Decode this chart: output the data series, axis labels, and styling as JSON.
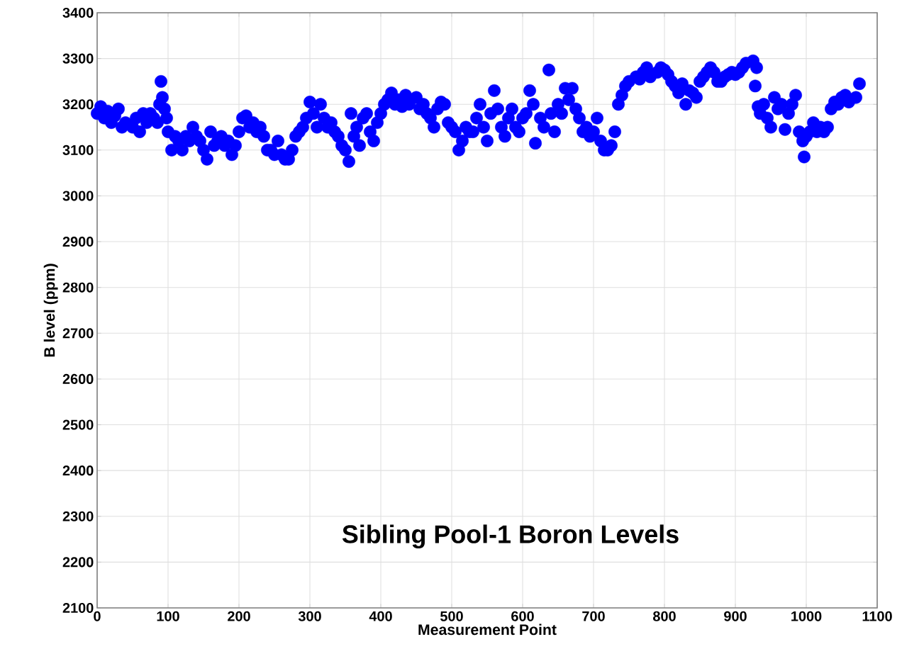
{
  "chart_data": {
    "type": "scatter",
    "title": "Sibling Pool-1 Boron Levels",
    "xlabel": "Measurement Point",
    "ylabel": "B level (ppm)",
    "xlim": [
      0,
      1100
    ],
    "ylim": [
      2100,
      3400
    ],
    "xticks": [
      0,
      100,
      200,
      300,
      400,
      500,
      600,
      700,
      800,
      900,
      1000,
      1100
    ],
    "yticks": [
      2100,
      2200,
      2300,
      2400,
      2500,
      2600,
      2700,
      2800,
      2900,
      3000,
      3100,
      3200,
      3300,
      3400
    ],
    "grid": true,
    "color": "#0000ff",
    "x": [
      0,
      5,
      10,
      15,
      20,
      25,
      30,
      35,
      40,
      50,
      55,
      60,
      65,
      70,
      75,
      80,
      85,
      88,
      90,
      92,
      95,
      98,
      100,
      105,
      110,
      115,
      120,
      125,
      130,
      135,
      140,
      145,
      150,
      155,
      160,
      165,
      170,
      175,
      180,
      185,
      190,
      195,
      200,
      205,
      210,
      215,
      220,
      225,
      230,
      235,
      240,
      245,
      250,
      255,
      260,
      265,
      270,
      275,
      280,
      285,
      290,
      295,
      300,
      305,
      310,
      315,
      320,
      325,
      330,
      335,
      340,
      345,
      350,
      355,
      358,
      362,
      366,
      370,
      375,
      380,
      385,
      390,
      395,
      400,
      405,
      410,
      415,
      420,
      425,
      430,
      435,
      440,
      450,
      455,
      460,
      465,
      470,
      475,
      480,
      485,
      490,
      495,
      500,
      505,
      510,
      515,
      520,
      525,
      530,
      535,
      540,
      545,
      550,
      555,
      560,
      565,
      570,
      575,
      580,
      585,
      590,
      595,
      600,
      605,
      610,
      615,
      618,
      625,
      630,
      637,
      640,
      645,
      650,
      655,
      660,
      665,
      670,
      675,
      680,
      685,
      690,
      695,
      700,
      705,
      710,
      715,
      720,
      725,
      730,
      735,
      740,
      745,
      750,
      760,
      765,
      770,
      775,
      780,
      790,
      795,
      800,
      805,
      810,
      815,
      820,
      825,
      830,
      835,
      840,
      845,
      850,
      855,
      860,
      865,
      870,
      875,
      880,
      885,
      890,
      895,
      900,
      905,
      910,
      915,
      925,
      928,
      930,
      932,
      935,
      940,
      945,
      950,
      955,
      960,
      965,
      970,
      975,
      980,
      985,
      990,
      995,
      997,
      1000,
      1005,
      1010,
      1015,
      1020,
      1025,
      1030,
      1035,
      1040,
      1045,
      1050,
      1055,
      1060,
      1070,
      1075
    ],
    "values": [
      3180,
      3195,
      3170,
      3185,
      3160,
      3175,
      3190,
      3150,
      3160,
      3150,
      3170,
      3140,
      3180,
      3160,
      3180,
      3170,
      3160,
      3200,
      3250,
      3215,
      3190,
      3170,
      3140,
      3100,
      3130,
      3120,
      3100,
      3130,
      3120,
      3150,
      3130,
      3120,
      3100,
      3080,
      3140,
      3110,
      3120,
      3130,
      3110,
      3120,
      3090,
      3110,
      3140,
      3170,
      3175,
      3150,
      3160,
      3140,
      3150,
      3130,
      3100,
      3100,
      3090,
      3120,
      3090,
      3080,
      3080,
      3100,
      3130,
      3140,
      3150,
      3170,
      3205,
      3180,
      3150,
      3200,
      3170,
      3150,
      3160,
      3140,
      3130,
      3110,
      3100,
      3075,
      3180,
      3130,
      3150,
      3110,
      3170,
      3180,
      3140,
      3120,
      3160,
      3180,
      3200,
      3210,
      3225,
      3200,
      3210,
      3195,
      3220,
      3200,
      3215,
      3190,
      3200,
      3180,
      3170,
      3150,
      3190,
      3205,
      3200,
      3160,
      3150,
      3140,
      3100,
      3120,
      3150,
      3140,
      3140,
      3170,
      3200,
      3150,
      3120,
      3180,
      3230,
      3190,
      3150,
      3130,
      3170,
      3190,
      3150,
      3140,
      3170,
      3180,
      3230,
      3200,
      3115,
      3170,
      3150,
      3275,
      3180,
      3140,
      3200,
      3180,
      3235,
      3210,
      3235,
      3190,
      3170,
      3140,
      3150,
      3130,
      3140,
      3170,
      3120,
      3100,
      3100,
      3110,
      3140,
      3200,
      3220,
      3240,
      3250,
      3260,
      3255,
      3270,
      3280,
      3260,
      3270,
      3280,
      3275,
      3265,
      3250,
      3240,
      3225,
      3245,
      3200,
      3230,
      3225,
      3215,
      3250,
      3260,
      3270,
      3280,
      3270,
      3250,
      3250,
      3260,
      3265,
      3270,
      3265,
      3270,
      3280,
      3290,
      3295,
      3240,
      3280,
      3195,
      3180,
      3200,
      3170,
      3150,
      3215,
      3190,
      3200,
      3145,
      3180,
      3200,
      3220,
      3140,
      3120,
      3085,
      3130,
      3140,
      3160,
      3140,
      3150,
      3140,
      3150,
      3190,
      3205,
      3200,
      3215,
      3220,
      3205,
      3215,
      3245
    ]
  }
}
